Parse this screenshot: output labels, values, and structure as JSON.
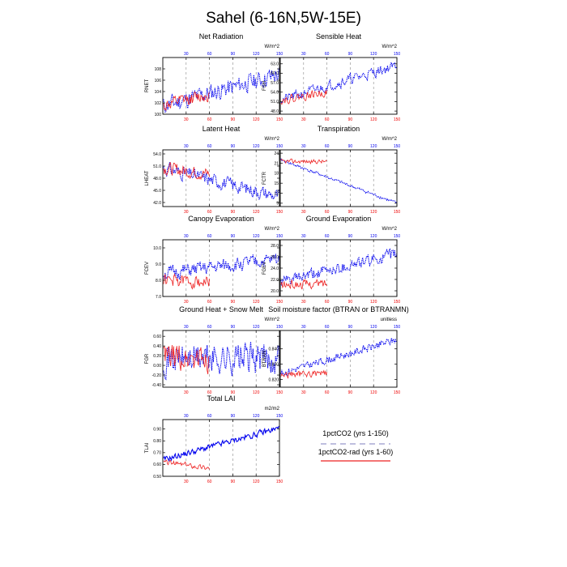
{
  "figure_title": "Sahel (6-16N,5W-15E)",
  "colors": {
    "blue": "#0000ee",
    "red": "#ee2222",
    "legend_blue": "#9999cc",
    "legend_red": "#ee2222"
  },
  "legend": [
    {
      "name": "1pctCO2 (yrs 1-150)",
      "color": "#9999cc",
      "dash": "dashed"
    },
    {
      "name": "1pctCO2-rad (yrs 1-60)",
      "color": "#ee2222",
      "dash": "solid"
    }
  ],
  "chart_data": [
    {
      "type": "line",
      "title": "Net Radiation",
      "units": "W/m^2",
      "ylabel": "RNET",
      "xlim": [
        0,
        150
      ],
      "ylim": [
        100,
        110
      ],
      "yticks": [
        "100",
        "102",
        "104",
        "106",
        "108"
      ],
      "yvals": [
        100,
        102,
        104,
        106,
        108
      ],
      "xticks_top": [
        "30",
        "60",
        "90",
        "120",
        "150"
      ],
      "xticks_bottom": [
        "30",
        "60",
        "90",
        "120",
        "150"
      ],
      "series": [
        {
          "color": "blue",
          "style": "dotted",
          "start": 101.5,
          "end": 107,
          "amp": 2.2,
          "years": 150,
          "seed": 11
        },
        {
          "color": "red",
          "style": "solid",
          "start": 101.5,
          "end": 103.5,
          "amp": 1.6,
          "years": 60,
          "seed": 12
        }
      ]
    },
    {
      "type": "line",
      "title": "Sensible Heat",
      "units": "W/m^2",
      "ylabel": "FSH",
      "xlim": [
        0,
        150
      ],
      "ylim": [
        47,
        65
      ],
      "yticks": [
        "48.0",
        "51.0",
        "54.0",
        "57.0",
        "60.0",
        "63.0"
      ],
      "yvals": [
        48,
        51,
        54,
        57,
        60,
        63
      ],
      "xticks_top": [
        "30",
        "60",
        "90",
        "120",
        "150"
      ],
      "xticks_bottom": [
        "30",
        "60",
        "90",
        "120",
        "150"
      ],
      "series": [
        {
          "color": "blue",
          "style": "dotted",
          "start": 51.5,
          "end": 62.5,
          "amp": 2.2,
          "years": 150,
          "seed": 21
        },
        {
          "color": "red",
          "style": "solid",
          "start": 51.5,
          "end": 54,
          "amp": 1.8,
          "years": 60,
          "seed": 22
        }
      ]
    },
    {
      "type": "line",
      "title": "Latent Heat",
      "units": "W/m^2",
      "ylabel": "LHEAT",
      "xlim": [
        0,
        150
      ],
      "ylim": [
        41,
        55
      ],
      "yticks": [
        "42.0",
        "45.0",
        "48.0",
        "51.0",
        "54.0"
      ],
      "yvals": [
        42,
        45,
        48,
        51,
        54
      ],
      "xticks_top": [
        "30",
        "60",
        "90",
        "120",
        "150"
      ],
      "xticks_bottom": [
        "30",
        "60",
        "90",
        "120",
        "150"
      ],
      "series": [
        {
          "color": "blue",
          "style": "dotted",
          "start": 50.5,
          "end": 43.5,
          "amp": 2.3,
          "years": 150,
          "seed": 31
        },
        {
          "color": "red",
          "style": "solid",
          "start": 50.5,
          "end": 49,
          "amp": 2.2,
          "years": 60,
          "seed": 32
        }
      ]
    },
    {
      "type": "line",
      "title": "Transpiration",
      "units": "W/m^2",
      "ylabel": "FCTR",
      "xlim": [
        0,
        150
      ],
      "ylim": [
        8,
        25
      ],
      "yticks": [
        "9",
        "12",
        "15",
        "18",
        "21",
        "24"
      ],
      "yvals": [
        9,
        12,
        15,
        18,
        21,
        24
      ],
      "xticks_top": [
        "30",
        "60",
        "90",
        "120",
        "150"
      ],
      "xticks_bottom": [
        "30",
        "60",
        "90",
        "120",
        "150"
      ],
      "series": [
        {
          "color": "blue",
          "style": "dotted",
          "start": 22,
          "end": 9,
          "amp": 0.6,
          "years": 150,
          "seed": 41
        },
        {
          "color": "red",
          "style": "solid",
          "start": 21.5,
          "end": 21.5,
          "amp": 0.9,
          "years": 60,
          "seed": 42
        }
      ]
    },
    {
      "type": "line",
      "title": "Canopy Evaporation",
      "units": "W/m^2",
      "ylabel": "FCEV",
      "xlim": [
        0,
        150
      ],
      "ylim": [
        7,
        10.5
      ],
      "yticks": [
        "7.0",
        "8.0",
        "9.0",
        "10.0"
      ],
      "yvals": [
        7,
        8,
        9,
        10
      ],
      "xticks_top": [
        "30",
        "60",
        "90",
        "120",
        "150"
      ],
      "xticks_bottom": [
        "30",
        "60",
        "90",
        "120",
        "150"
      ],
      "series": [
        {
          "color": "blue",
          "style": "dotted",
          "start": 8.4,
          "end": 9.3,
          "amp": 0.6,
          "years": 150,
          "seed": 51
        },
        {
          "color": "red",
          "style": "solid",
          "start": 8.0,
          "end": 7.9,
          "amp": 0.55,
          "years": 60,
          "seed": 52
        }
      ]
    },
    {
      "type": "line",
      "title": "Ground Evaporation",
      "units": "W/m^2",
      "ylabel": "FGEV",
      "xlim": [
        0,
        150
      ],
      "ylim": [
        19,
        29
      ],
      "yticks": [
        "20.0",
        "22.0",
        "24.0",
        "26.0",
        "28.0"
      ],
      "yvals": [
        20,
        22,
        24,
        26,
        28
      ],
      "xticks_top": [
        "30",
        "60",
        "90",
        "120",
        "150"
      ],
      "xticks_bottom": [
        "30",
        "60",
        "90",
        "120",
        "150"
      ],
      "series": [
        {
          "color": "blue",
          "style": "dotted",
          "start": 21.5,
          "end": 26.5,
          "amp": 1.4,
          "years": 150,
          "seed": 61
        },
        {
          "color": "red",
          "style": "solid",
          "start": 21,
          "end": 21.3,
          "amp": 1.1,
          "years": 60,
          "seed": 62
        }
      ]
    },
    {
      "type": "line",
      "title": "Ground Heat + Snow Melt",
      "units": "W/m^2",
      "ylabel": "FGR",
      "xlim": [
        0,
        150
      ],
      "ylim": [
        -0.45,
        0.72
      ],
      "yticks": [
        "-0.40",
        "-0.20",
        "0.00",
        "0.20",
        "0.40",
        "0.60"
      ],
      "yvals": [
        -0.4,
        -0.2,
        0,
        0.2,
        0.4,
        0.6
      ],
      "xticks_top": [
        "30",
        "60",
        "90",
        "120",
        "150"
      ],
      "xticks_bottom": [
        "30",
        "60",
        "90",
        "120",
        "150"
      ],
      "series": [
        {
          "color": "blue",
          "style": "dotted",
          "start": 0.15,
          "end": 0.15,
          "amp": 0.45,
          "years": 150,
          "seed": 71
        },
        {
          "color": "red",
          "style": "solid",
          "start": 0.15,
          "end": 0.15,
          "amp": 0.4,
          "years": 60,
          "seed": 72
        }
      ]
    },
    {
      "type": "line",
      "title": "Soil moisture factor (BTRAN or BTRANMN)",
      "units": "unitless",
      "ylabel": "BTRAN",
      "xlim": [
        0,
        150
      ],
      "ylim": [
        0.815,
        0.852
      ],
      "yticks": [
        "0.820",
        "0.830",
        "0.840"
      ],
      "yvals": [
        0.82,
        0.83,
        0.84
      ],
      "xticks_top": [
        "30",
        "60",
        "90",
        "120",
        "150"
      ],
      "xticks_bottom": [
        "30",
        "60",
        "90",
        "120",
        "150"
      ],
      "series": [
        {
          "color": "blue",
          "style": "dotted",
          "start": 0.824,
          "end": 0.846,
          "amp": 0.0035,
          "years": 150,
          "seed": 81
        },
        {
          "color": "red",
          "style": "solid",
          "start": 0.823,
          "end": 0.824,
          "amp": 0.003,
          "years": 60,
          "seed": 82
        }
      ]
    },
    {
      "type": "line",
      "title": "Total LAI",
      "units": "m2/m2",
      "ylabel": "TLAI",
      "xlim": [
        0,
        150
      ],
      "ylim": [
        0.5,
        0.98
      ],
      "yticks": [
        "0.50",
        "0.60",
        "0.70",
        "0.80",
        "0.90"
      ],
      "yvals": [
        0.5,
        0.6,
        0.7,
        0.8,
        0.9
      ],
      "xticks_top": [
        "30",
        "60",
        "90",
        "120",
        "150"
      ],
      "xticks_bottom": [
        "30",
        "60",
        "90",
        "120",
        "150"
      ],
      "series": [
        {
          "color": "blue",
          "style": "solid",
          "start": 0.64,
          "end": 0.91,
          "amp": 0.035,
          "years": 150,
          "seed": 91
        },
        {
          "color": "red",
          "style": "solid",
          "start": 0.62,
          "end": 0.57,
          "amp": 0.03,
          "years": 60,
          "seed": 92
        }
      ]
    }
  ]
}
